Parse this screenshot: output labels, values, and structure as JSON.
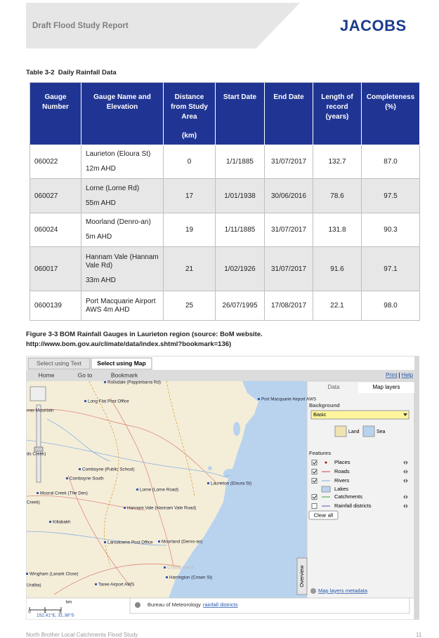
{
  "header": {
    "title": "Draft Flood Study Report",
    "logo": "JACOBS"
  },
  "table": {
    "caption": "Table 3-2  Daily Rainfall Data",
    "columns": [
      {
        "text": "Gauge Number"
      },
      {
        "text": "Gauge Name and Elevation"
      },
      {
        "text": "Distance from Study Area",
        "unit": "(km)"
      },
      {
        "text": "Start Date"
      },
      {
        "text": "End Date"
      },
      {
        "text": "Length of record (years)"
      },
      {
        "text": "Completeness (%)"
      }
    ],
    "rows": [
      {
        "number": "060022",
        "name": "Laurieton (Eloura St)",
        "elevation": "12m AHD",
        "distance": "0",
        "start": "1/1/1885",
        "end": "31/07/2017",
        "length": "132.7",
        "completeness": "87.0"
      },
      {
        "number": "060027",
        "name": "Lorne (Lorne Rd)",
        "elevation": "55m AHD",
        "distance": "17",
        "start": "1/01/1938",
        "end": "30/06/2016",
        "length": "78.6",
        "completeness": "97.5"
      },
      {
        "number": "060024",
        "name": "Moorland (Denro-an)",
        "elevation": "5m AHD",
        "distance": "19",
        "start": "1/11/1885",
        "end": "31/07/2017",
        "length": "131.8",
        "completeness": "90.3"
      },
      {
        "number": "060017",
        "name": "Hannam Vale (Hannam Vale Rd)",
        "elevation": "33m AHD",
        "distance": "21",
        "start": "1/02/1926",
        "end": "31/07/2017",
        "length": "91.6",
        "completeness": "97.1"
      },
      {
        "number": "0600139",
        "name": "Port Macquarie Airport AWS 4m AHD",
        "distance": "25",
        "start": "26/07/1995",
        "end": "17/08/2017",
        "length": "22.1",
        "completeness": "98.0"
      }
    ]
  },
  "figure": {
    "caption": [
      "Figure 3-3 BOM Rainfall Gauges in Laurieton region (source: BoM website.",
      "http://www.bom.gov.au/climate/data/index.shtml?bookmark=136)"
    ],
    "map": {
      "tabs": [
        "Select using Text",
        "Select using Map"
      ],
      "toolbar": [
        "Home",
        "Go to",
        "Bookmark"
      ],
      "links": [
        "Print",
        "Help"
      ],
      "places": [
        "Rollsdale (Pappinbarra Rd)",
        "Long Flat Post Office",
        "Port Macquarie Airport AWS",
        "rras Mountain",
        "ds Creek)",
        "Comboyne (Public School)",
        "Comboyne South",
        "Lorne (Lorne Road)",
        "Laurieton (Eloura St)",
        "Mooral Creek (The Den)",
        "Creek)",
        "Hannam Vale (Hannam Vale Road)",
        "Killabakh",
        "Lansdowne Post Office",
        "Moorland (Denro-an)",
        "Crowdy Head",
        "Wingham (Lanark Close)",
        "Uralba)",
        "Taree Airport AWS",
        "Harrington (Crown St)"
      ],
      "panel": {
        "tabs": [
          "Data",
          "Map layers"
        ],
        "background_label": "Background",
        "background_value": "Basic",
        "swatches": [
          "Land",
          "Sea"
        ],
        "features_label": "Features",
        "features": [
          {
            "name": "Places",
            "checked": true
          },
          {
            "name": "Roads",
            "checked": true
          },
          {
            "name": "Rivers",
            "checked": true
          },
          {
            "name": "Lakes",
            "checked": null
          },
          {
            "name": "Catchments",
            "checked": true
          },
          {
            "name": "Rainfall districts",
            "checked": false
          }
        ],
        "clear": "Clear all",
        "overview": "Overview",
        "metadata": "Map layers metadata"
      },
      "scale": [
        "0",
        "4",
        "8",
        "km"
      ],
      "coords": "152.41°E, 31.38°S",
      "info_prefix": "Bureau of Meteorology",
      "info_link": "rainfall districts"
    }
  },
  "footer": {
    "left": "North Brother Local Catchments Flood Study",
    "page": "11"
  }
}
